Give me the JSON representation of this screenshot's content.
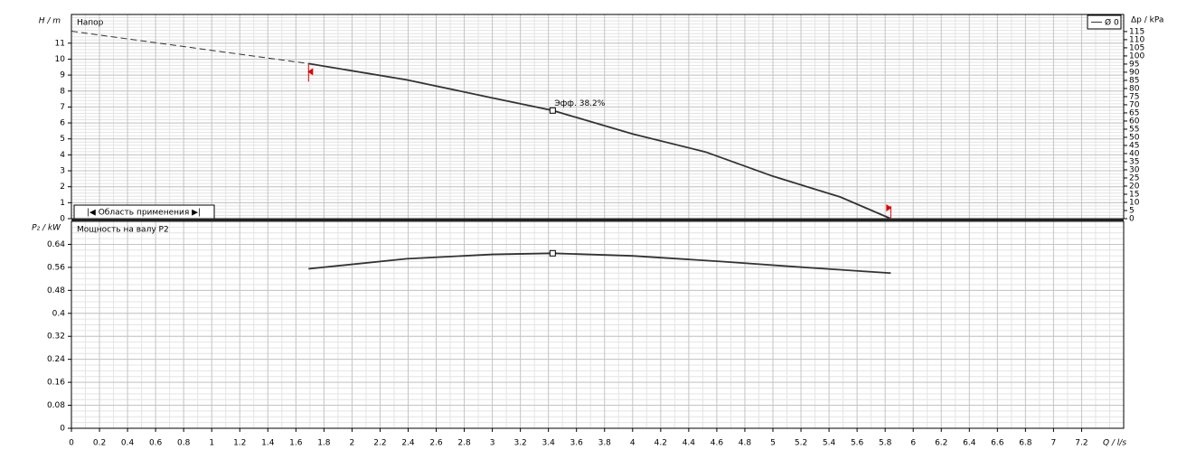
{
  "chart_data": [
    {
      "type": "line",
      "title": "Напор",
      "ylabel": "H / m",
      "y2label": "Δp / kPa",
      "xlim": [
        0,
        7.5
      ],
      "xticks": [
        0,
        0.2,
        0.4,
        0.6,
        0.8,
        1,
        1.2,
        1.4,
        1.6,
        1.8,
        2,
        2.2,
        2.4,
        2.6,
        2.8,
        3,
        3.2,
        3.4,
        3.6,
        3.8,
        4,
        4.2,
        4.4,
        4.6,
        4.8,
        5,
        5.2,
        5.4,
        5.6,
        5.8,
        6,
        6.2,
        6.4,
        6.6,
        6.8,
        7,
        7.2
      ],
      "ylim": [
        0,
        12.8
      ],
      "yticks": [
        0,
        1,
        2,
        3,
        4,
        5,
        6,
        7,
        8,
        9,
        10,
        11
      ],
      "y2lim": [
        0,
        125.5
      ],
      "y2ticks": [
        0,
        5,
        10,
        15,
        20,
        25,
        30,
        35,
        40,
        45,
        50,
        55,
        60,
        65,
        70,
        75,
        80,
        85,
        90,
        95,
        100,
        105,
        110,
        115
      ],
      "series": [
        {
          "name": "Ø 0",
          "color": "#333333",
          "x": [
            1.69,
            2.39,
            3.0,
            3.43,
            4.0,
            4.52,
            5.0,
            5.48,
            5.84
          ],
          "values": [
            9.72,
            8.7,
            7.57,
            6.78,
            5.31,
            4.18,
            2.66,
            1.36,
            0
          ]
        },
        {
          "color": "#333333",
          "style": "dashed",
          "x": [
            0,
            1.69
          ],
          "values": [
            11.75,
            9.72
          ]
        }
      ],
      "duty_point": {
        "x": 3.43,
        "y": 6.78,
        "label": "Эфф. 38.2%"
      },
      "range": {
        "label": "|◀ Область применения ▶|",
        "x": [
          1.69,
          5.84
        ],
        "color": "#dd0000"
      },
      "legend": "top-right",
      "grid": true
    },
    {
      "type": "line",
      "title": "Мощность на валу P2",
      "ylabel": "P₂ / kW",
      "xlabel": "Q / l/s",
      "xlim": [
        0,
        7.5
      ],
      "xticks": [
        0,
        0.2,
        0.4,
        0.6,
        0.8,
        1,
        1.2,
        1.4,
        1.6,
        1.8,
        2,
        2.2,
        2.4,
        2.6,
        2.8,
        3,
        3.2,
        3.4,
        3.6,
        3.8,
        4,
        4.2,
        4.4,
        4.6,
        4.8,
        5,
        5.2,
        5.4,
        5.6,
        5.8,
        6,
        6.2,
        6.4,
        6.6,
        6.8,
        7,
        7.2
      ],
      "ylim": [
        0,
        0.72
      ],
      "yticks": [
        0,
        0.08,
        0.16,
        0.24,
        0.32,
        0.4,
        0.48,
        0.56,
        0.64
      ],
      "series": [
        {
          "color": "#333333",
          "x": [
            1.69,
            2.39,
            3.0,
            3.43,
            4.0,
            4.64,
            5.28,
            5.84
          ],
          "values": [
            0.555,
            0.59,
            0.605,
            0.609,
            0.6,
            0.58,
            0.558,
            0.54
          ]
        }
      ],
      "duty_point": {
        "x": 3.43,
        "y": 0.609
      },
      "grid": true
    }
  ]
}
